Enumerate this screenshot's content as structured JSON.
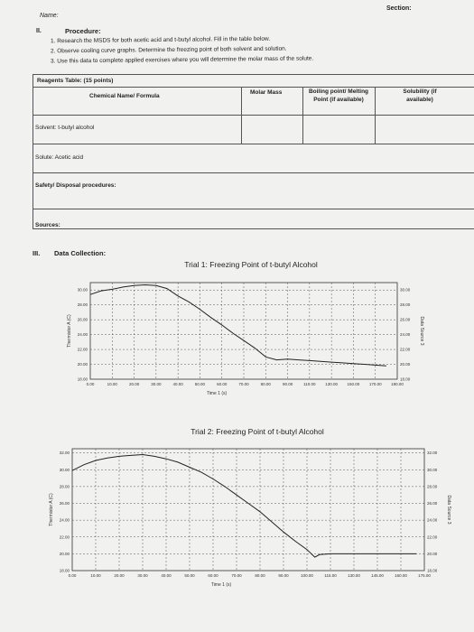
{
  "header": {
    "name_label": "Name:",
    "section_label": "Section:"
  },
  "procedure": {
    "roman": "II.",
    "title": "Procedure:",
    "steps": [
      "1.  Research the MSDS for both acetic acid and t-butyl alcohol. Fill in the table below.",
      "2.  Observe cooling curve graphs. Determine the freezing point of both solvent and solution.",
      "3.  Use this data to complete applied exercises where you will determine the molar mass of the solute."
    ]
  },
  "reagents_table": {
    "title": "Reagents Table: (15 points)",
    "headers": [
      "Chemical Name/ Formula",
      "Molar Mass",
      "Boiling point/ Melting Point (if available)",
      "Solubility (if available)"
    ],
    "rows": [
      "Solvent: t-butyl alcohol",
      "Solute: Acetic acid"
    ],
    "safety_label": "Safety/ Disposal procedures:",
    "sources_label": "Sources:"
  },
  "data_collection": {
    "roman": "III.",
    "title": "Data Collection:"
  },
  "chart_data": [
    {
      "type": "line",
      "title": "Trial 1: Freezing Point of t-butyl Alcohol",
      "xlabel": "Time 1 (s)",
      "ylabel": "Thermistor A (C)",
      "y2label": "Data Source 3",
      "x_ticks": [
        "0.00",
        "10.00",
        "20.00",
        "30.00",
        "40.00",
        "50.00",
        "60.00",
        "70.00",
        "80.00",
        "90.00",
        "110.00",
        "130.00",
        "150.00",
        "170.00",
        "190.00"
      ],
      "y_ticks": [
        "18.00",
        "20.00",
        "22.00",
        "24.00",
        "26.00",
        "28.00",
        "30.00"
      ],
      "y2_ticks": [
        "18.00",
        "20.00",
        "22.00",
        "24.00",
        "26.00",
        "28.00",
        "30.00"
      ],
      "ylim": [
        18,
        31
      ],
      "grid": true,
      "series": [
        {
          "values": [
            [
              0,
              29.4
            ],
            [
              5,
              29.9
            ],
            [
              10,
              30.1
            ],
            [
              15,
              30.4
            ],
            [
              20,
              30.6
            ],
            [
              25,
              30.7
            ],
            [
              30,
              30.6
            ],
            [
              35,
              30.2
            ],
            [
              40,
              29.2
            ],
            [
              45,
              28.4
            ],
            [
              50,
              27.4
            ],
            [
              55,
              26.3
            ],
            [
              60,
              25.3
            ],
            [
              65,
              24.2
            ],
            [
              70,
              23.2
            ],
            [
              75,
              22.2
            ],
            [
              80,
              21.0
            ],
            [
              85,
              20.6
            ],
            [
              90,
              20.7
            ],
            [
              100,
              20.6
            ],
            [
              110,
              20.5
            ],
            [
              120,
              20.4
            ],
            [
              130,
              20.3
            ],
            [
              140,
              20.2
            ],
            [
              150,
              20.1
            ],
            [
              160,
              20.0
            ],
            [
              170,
              19.9
            ],
            [
              180,
              19.8
            ]
          ]
        }
      ]
    },
    {
      "type": "line",
      "title": "Trial 2: Freezing Point of t-butyl Alcohol",
      "xlabel": "Time 1 (s)",
      "ylabel": "Thermistor A (C)",
      "y2label": "Data Source 3",
      "x_ticks": [
        "0.00",
        "10.00",
        "20.00",
        "30.00",
        "40.00",
        "50.00",
        "60.00",
        "70.00",
        "80.00",
        "90.00",
        "100.00",
        "115.00",
        "130.00",
        "145.00",
        "160.00",
        "175.00"
      ],
      "y_ticks": [
        "18.00",
        "20.00",
        "22.00",
        "24.00",
        "26.00",
        "28.00",
        "30.00",
        "32.00"
      ],
      "y2_ticks": [
        "18.00",
        "20.00",
        "22.00",
        "24.00",
        "26.00",
        "28.00",
        "30.00",
        "32.00"
      ],
      "ylim": [
        18,
        32.5
      ],
      "grid": true,
      "series": [
        {
          "values": [
            [
              0,
              29.9
            ],
            [
              5,
              30.6
            ],
            [
              10,
              31.1
            ],
            [
              15,
              31.4
            ],
            [
              20,
              31.6
            ],
            [
              25,
              31.7
            ],
            [
              30,
              31.8
            ],
            [
              35,
              31.6
            ],
            [
              40,
              31.3
            ],
            [
              45,
              30.9
            ],
            [
              50,
              30.3
            ],
            [
              55,
              29.7
            ],
            [
              60,
              28.9
            ],
            [
              65,
              28.0
            ],
            [
              70,
              27.0
            ],
            [
              75,
              26.0
            ],
            [
              80,
              25.0
            ],
            [
              85,
              23.8
            ],
            [
              90,
              22.6
            ],
            [
              95,
              21.5
            ],
            [
              100,
              20.5
            ],
            [
              105,
              19.6
            ],
            [
              108,
              19.9
            ],
            [
              115,
              20.0
            ],
            [
              125,
              20.0
            ],
            [
              135,
              20.0
            ],
            [
              145,
              20.0
            ],
            [
              160,
              20.0
            ],
            [
              170,
              20.0
            ]
          ]
        }
      ]
    }
  ]
}
